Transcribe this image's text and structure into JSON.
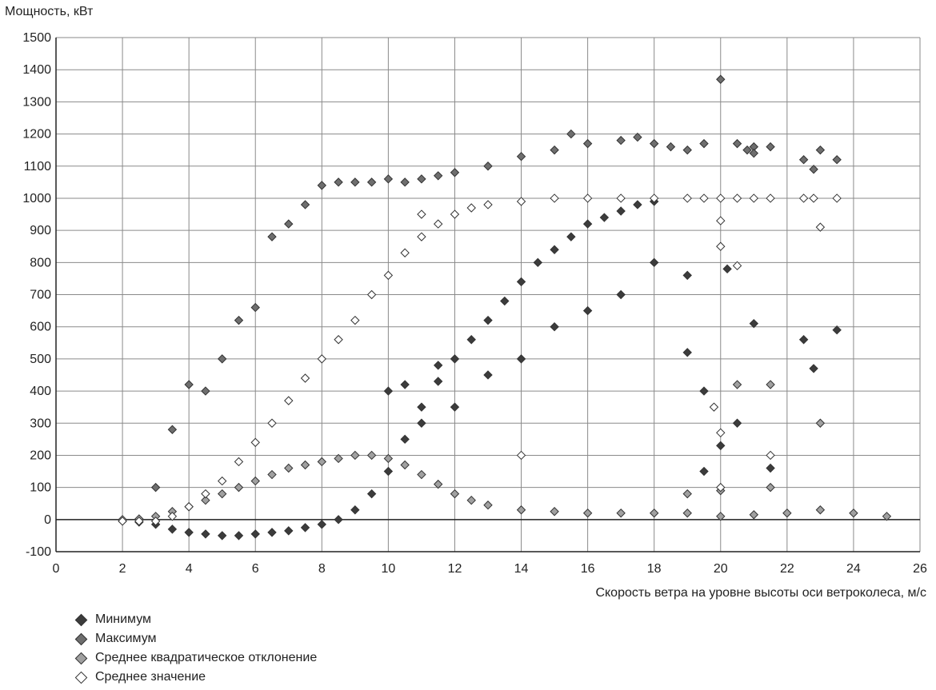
{
  "chart_data": {
    "type": "scatter",
    "title": "",
    "ylabel": "Мощность, кВт",
    "xlabel": "Скорость ветра на уровне высоты оси ветроколеса, м/с",
    "xlim": [
      0,
      26
    ],
    "ylim": [
      -100,
      1500
    ],
    "xticks": [
      0,
      2,
      4,
      6,
      8,
      10,
      12,
      14,
      16,
      18,
      20,
      22,
      24,
      26
    ],
    "yticks": [
      -100,
      0,
      100,
      200,
      300,
      400,
      500,
      600,
      700,
      800,
      900,
      1000,
      1100,
      1200,
      1300,
      1400,
      1500
    ],
    "grid": true,
    "legend_position": "bottom-left",
    "series": [
      {
        "name": "Минимум",
        "color": "#3c3c3c",
        "points": [
          [
            2.0,
            -5
          ],
          [
            2.5,
            -8
          ],
          [
            3.0,
            -15
          ],
          [
            3.5,
            -30
          ],
          [
            4.0,
            -40
          ],
          [
            4.5,
            -45
          ],
          [
            5.0,
            -50
          ],
          [
            5.5,
            -50
          ],
          [
            6.0,
            -45
          ],
          [
            6.5,
            -40
          ],
          [
            7.0,
            -35
          ],
          [
            7.5,
            -25
          ],
          [
            8.0,
            -15
          ],
          [
            8.5,
            0
          ],
          [
            9.0,
            30
          ],
          [
            9.5,
            80
          ],
          [
            10.0,
            150
          ],
          [
            10.5,
            250
          ],
          [
            11.0,
            350
          ],
          [
            11.5,
            430
          ],
          [
            12.0,
            500
          ],
          [
            12.5,
            560
          ],
          [
            13.0,
            620
          ],
          [
            13.5,
            680
          ],
          [
            14.0,
            740
          ],
          [
            14.5,
            800
          ],
          [
            15.0,
            840
          ],
          [
            15.5,
            880
          ],
          [
            16.0,
            920
          ],
          [
            16.5,
            940
          ],
          [
            17.0,
            960
          ],
          [
            17.5,
            980
          ],
          [
            18.0,
            990
          ],
          [
            10.0,
            400
          ],
          [
            10.5,
            420
          ],
          [
            11.0,
            300
          ],
          [
            11.5,
            480
          ],
          [
            12.0,
            350
          ],
          [
            13.0,
            450
          ],
          [
            14.0,
            500
          ],
          [
            15.0,
            600
          ],
          [
            16.0,
            650
          ],
          [
            17.0,
            700
          ],
          [
            18.0,
            800
          ],
          [
            19.0,
            520
          ],
          [
            19.5,
            400
          ],
          [
            20.0,
            230
          ],
          [
            20.5,
            300
          ],
          [
            21.0,
            610
          ],
          [
            21.5,
            160
          ],
          [
            22.5,
            560
          ],
          [
            22.8,
            470
          ],
          [
            23.5,
            590
          ],
          [
            19.0,
            760
          ],
          [
            19.5,
            150
          ],
          [
            20.2,
            780
          ]
        ]
      },
      {
        "name": "Максимум",
        "color": "#6e6e6e",
        "points": [
          [
            3.0,
            100
          ],
          [
            3.5,
            280
          ],
          [
            4.0,
            420
          ],
          [
            4.5,
            400
          ],
          [
            5.0,
            500
          ],
          [
            5.5,
            620
          ],
          [
            6.0,
            660
          ],
          [
            6.5,
            880
          ],
          [
            7.0,
            920
          ],
          [
            7.5,
            980
          ],
          [
            8.0,
            1040
          ],
          [
            8.5,
            1050
          ],
          [
            9.0,
            1050
          ],
          [
            9.5,
            1050
          ],
          [
            10.0,
            1060
          ],
          [
            10.5,
            1050
          ],
          [
            11.0,
            1060
          ],
          [
            11.5,
            1070
          ],
          [
            12.0,
            1080
          ],
          [
            13.0,
            1100
          ],
          [
            14.0,
            1130
          ],
          [
            15.0,
            1150
          ],
          [
            15.5,
            1200
          ],
          [
            16.0,
            1170
          ],
          [
            17.0,
            1180
          ],
          [
            17.5,
            1190
          ],
          [
            18.0,
            1170
          ],
          [
            18.5,
            1160
          ],
          [
            19.0,
            1150
          ],
          [
            19.5,
            1170
          ],
          [
            20.0,
            1370
          ],
          [
            20.5,
            1170
          ],
          [
            21.0,
            1160
          ],
          [
            21.5,
            1160
          ],
          [
            22.5,
            1120
          ],
          [
            23.0,
            1150
          ],
          [
            23.5,
            1120
          ],
          [
            21.0,
            1140
          ],
          [
            20.8,
            1150
          ],
          [
            22.8,
            1090
          ]
        ]
      },
      {
        "name": "Среднее квадратическое отклонение",
        "color": "#a0a0a0",
        "points": [
          [
            2.0,
            0
          ],
          [
            2.5,
            2
          ],
          [
            3.0,
            10
          ],
          [
            3.5,
            25
          ],
          [
            4.0,
            40
          ],
          [
            4.5,
            60
          ],
          [
            5.0,
            80
          ],
          [
            5.5,
            100
          ],
          [
            6.0,
            120
          ],
          [
            6.5,
            140
          ],
          [
            7.0,
            160
          ],
          [
            7.5,
            170
          ],
          [
            8.0,
            180
          ],
          [
            8.5,
            190
          ],
          [
            9.0,
            200
          ],
          [
            9.5,
            200
          ],
          [
            10.0,
            190
          ],
          [
            10.5,
            170
          ],
          [
            11.0,
            140
          ],
          [
            11.5,
            110
          ],
          [
            12.0,
            80
          ],
          [
            12.5,
            60
          ],
          [
            13.0,
            45
          ],
          [
            14.0,
            30
          ],
          [
            15.0,
            25
          ],
          [
            16.0,
            20
          ],
          [
            17.0,
            20
          ],
          [
            18.0,
            20
          ],
          [
            19.0,
            20
          ],
          [
            20.0,
            10
          ],
          [
            21.0,
            15
          ],
          [
            22.0,
            20
          ],
          [
            23.0,
            30
          ],
          [
            24.0,
            20
          ],
          [
            25.0,
            10
          ],
          [
            19.0,
            80
          ],
          [
            20.0,
            90
          ],
          [
            21.5,
            100
          ],
          [
            23.0,
            300
          ],
          [
            20.5,
            420
          ],
          [
            21.5,
            420
          ]
        ]
      },
      {
        "name": "Среднее значение",
        "color": "#ffffff",
        "points": [
          [
            2.0,
            -5
          ],
          [
            2.5,
            -5
          ],
          [
            3.0,
            -5
          ],
          [
            3.5,
            10
          ],
          [
            4.0,
            40
          ],
          [
            4.5,
            80
          ],
          [
            5.0,
            120
          ],
          [
            5.5,
            180
          ],
          [
            6.0,
            240
          ],
          [
            6.5,
            300
          ],
          [
            7.0,
            370
          ],
          [
            7.5,
            440
          ],
          [
            8.0,
            500
          ],
          [
            8.5,
            560
          ],
          [
            9.0,
            620
          ],
          [
            9.5,
            700
          ],
          [
            10.0,
            760
          ],
          [
            10.5,
            830
          ],
          [
            11.0,
            880
          ],
          [
            11.5,
            920
          ],
          [
            12.0,
            950
          ],
          [
            12.5,
            970
          ],
          [
            13.0,
            980
          ],
          [
            14.0,
            990
          ],
          [
            15.0,
            1000
          ],
          [
            16.0,
            1000
          ],
          [
            17.0,
            1000
          ],
          [
            18.0,
            1000
          ],
          [
            19.0,
            1000
          ],
          [
            19.5,
            1000
          ],
          [
            20.0,
            1000
          ],
          [
            20.5,
            1000
          ],
          [
            21.0,
            1000
          ],
          [
            21.5,
            1000
          ],
          [
            22.5,
            1000
          ],
          [
            22.8,
            1000
          ],
          [
            23.5,
            1000
          ],
          [
            23.0,
            910
          ],
          [
            20.0,
            930
          ],
          [
            20.0,
            850
          ],
          [
            20.5,
            790
          ],
          [
            19.8,
            350
          ],
          [
            20.0,
            270
          ],
          [
            20.0,
            100
          ],
          [
            21.5,
            200
          ],
          [
            14.0,
            200
          ],
          [
            11.0,
            950
          ]
        ]
      }
    ]
  }
}
